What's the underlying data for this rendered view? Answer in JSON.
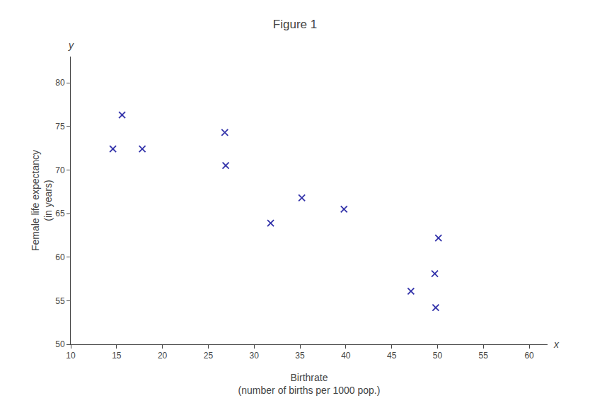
{
  "chart_data": {
    "type": "scatter",
    "title": "Figure 1",
    "x_label": "Birthrate\n(number of births per 1000 pop.)",
    "y_label": "Female life expectancy\n(in years)",
    "x": [
      17.8,
      26.9,
      47.1,
      49.8,
      26.8,
      15.6,
      50.1,
      35.2,
      31.8,
      39.8,
      14.6,
      49.7
    ],
    "values": [
      72.4,
      70.5,
      56.1,
      54.2,
      74.3,
      76.3,
      62.2,
      66.8,
      63.9,
      65.5,
      72.4,
      58.1
    ],
    "color": "#3333aa",
    "marker": "x",
    "xlim": [
      10,
      62
    ],
    "ylim": [
      50,
      83
    ],
    "xticks": [
      10,
      15,
      20,
      25,
      30,
      35,
      40,
      45,
      50,
      55,
      60
    ],
    "yticks": [
      50,
      55,
      60,
      65,
      70,
      75,
      80
    ],
    "annotations": [
      "x",
      "y"
    ],
    "grid": false
  }
}
